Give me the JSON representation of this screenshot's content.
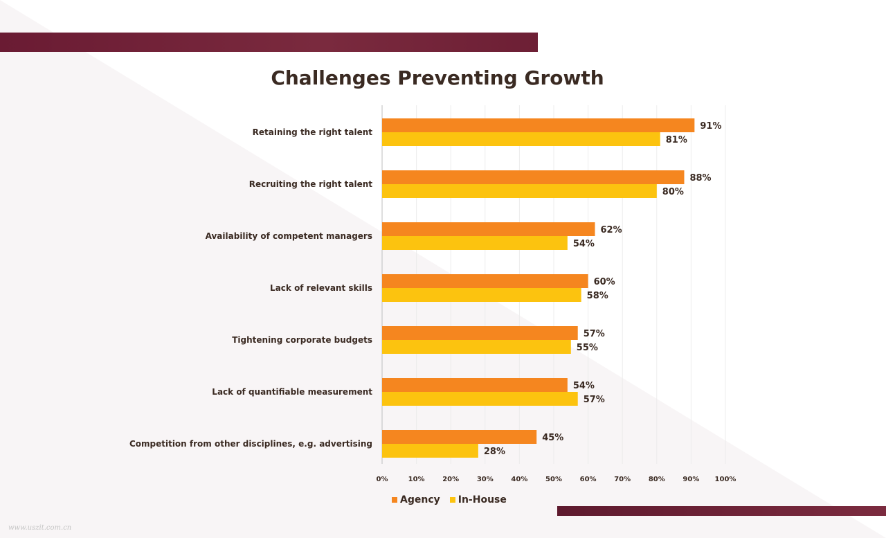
{
  "watermark": "www.uszit.com.cn",
  "colors": {
    "agency": "#f5861f",
    "inhouse": "#fcc30f",
    "band": "#6d1f35",
    "text": "#3a2a22"
  },
  "chart_data": {
    "type": "bar",
    "orientation": "horizontal",
    "title": "Challenges Preventing Growth",
    "categories": [
      "Retaining the right talent",
      "Recruiting the right talent",
      "Availability of competent managers",
      "Lack of relevant skills",
      "Tightening corporate budgets",
      "Lack of quantifiable measurement",
      "Competition from other disciplines, e.g. advertising"
    ],
    "series": [
      {
        "name": "Agency",
        "values": [
          91,
          88,
          62,
          60,
          57,
          54,
          45
        ],
        "labels": [
          "91%",
          "88%",
          "62%",
          "60%",
          "57%",
          "54%",
          "45%"
        ]
      },
      {
        "name": "In-House",
        "values": [
          81,
          80,
          54,
          58,
          55,
          57,
          28
        ],
        "labels": [
          "81%",
          "80%",
          "54%",
          "58%",
          "55%",
          "57%",
          "28%"
        ]
      }
    ],
    "xlim": [
      0,
      100
    ],
    "xticks": [
      "0%",
      "10%",
      "20%",
      "30%",
      "40%",
      "50%",
      "60%",
      "70%",
      "80%",
      "90%",
      "100%"
    ],
    "grid": true,
    "legend": "bottom"
  }
}
